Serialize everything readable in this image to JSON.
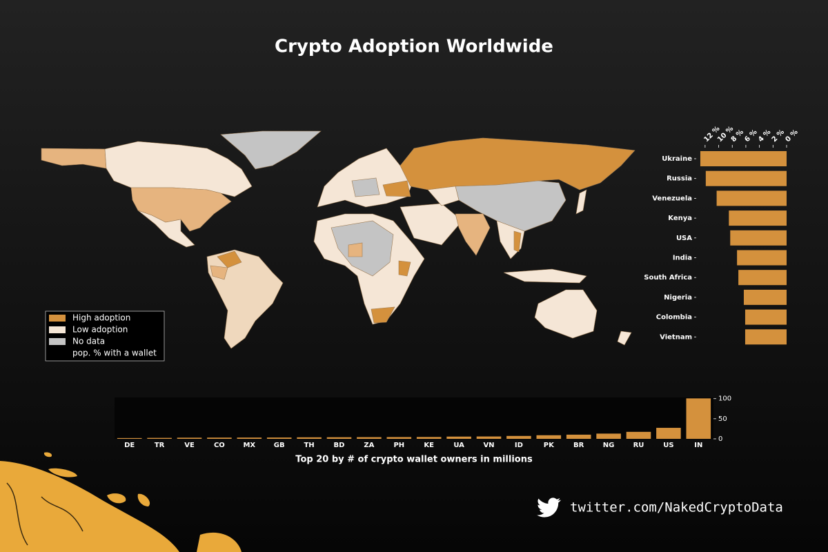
{
  "title": "Crypto Adoption Worldwide",
  "footer": "twitter.com/NakedCryptoData",
  "chart_data": [
    {
      "type": "map",
      "legend": {
        "corner": "lower left",
        "items": [
          {
            "label": "High adoption",
            "color": "#d4913d"
          },
          {
            "label": "Low adoption",
            "color": "#f5e6d6"
          },
          {
            "label": "No data",
            "color": "#c4c4c4"
          }
        ],
        "note": "pop. % with a wallet"
      }
    },
    {
      "type": "hbar",
      "categories": [
        "Ukraine",
        "Russia",
        "Venezuela",
        "Kenya",
        "USA",
        "India",
        "South Africa",
        "Nigeria",
        "Colombia",
        "Vietnam"
      ],
      "values": [
        12.7,
        11.9,
        10.3,
        8.5,
        8.3,
        7.3,
        7.1,
        6.3,
        6.1,
        6.1
      ],
      "color": "#d4913d",
      "xlim": [
        12.9,
        0
      ],
      "xticks": [
        {
          "value": 12,
          "label": "12 %"
        },
        {
          "value": 10,
          "label": "10 %"
        },
        {
          "value": 8,
          "label": "8 %"
        },
        {
          "value": 6,
          "label": "6 %"
        },
        {
          "value": 4,
          "label": "4 %"
        },
        {
          "value": 2,
          "label": "2 %"
        },
        {
          "value": 0,
          "label": "0 %"
        }
      ]
    },
    {
      "type": "bar",
      "xlabel": "Top 20 by # of crypto wallet owners in millions",
      "categories": [
        "DE",
        "TR",
        "VE",
        "CO",
        "MX",
        "GB",
        "TH",
        "BD",
        "ZA",
        "PH",
        "KE",
        "UA",
        "VN",
        "ID",
        "PK",
        "BR",
        "NG",
        "RU",
        "US",
        "IN"
      ],
      "values": [
        2.0,
        2.4,
        2.9,
        3.1,
        3.2,
        3.3,
        3.8,
        4.0,
        4.2,
        4.4,
        4.6,
        5.6,
        5.9,
        7.2,
        9.0,
        10.4,
        13.0,
        17.4,
        27.4,
        100.7
      ],
      "color": "#d4913d",
      "ylim": [
        0,
        103
      ],
      "yticks": [
        0,
        50,
        100
      ],
      "yaxis_side": "right"
    }
  ]
}
